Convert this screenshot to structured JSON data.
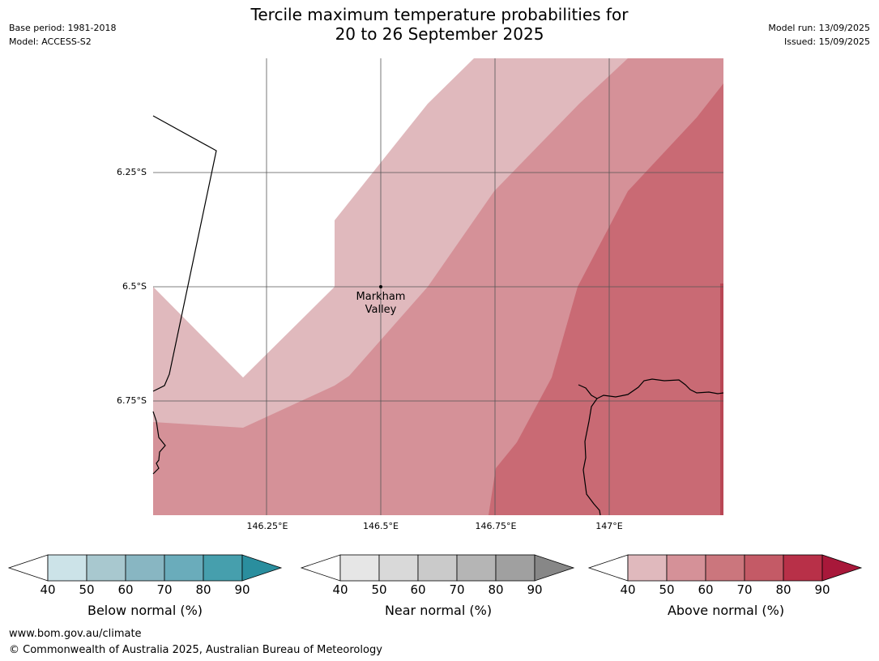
{
  "header": {
    "title_line1": "Tercile maximum temperature probabilities for",
    "title_line2": "20 to 26 September 2025",
    "base_period": "Base period: 1981-2018",
    "model": "Model: ACCESS-S2",
    "model_run": "Model run: 13/09/2025",
    "issued": "Issued: 15/09/2025"
  },
  "map": {
    "place_label_line1": "Markham",
    "place_label_line2": "Valley",
    "lat_labels": [
      "6.25°S",
      "6.5°S",
      "6.75°S"
    ],
    "lon_labels": [
      "146.25°E",
      "146.5°E",
      "146.75°E",
      "147°E"
    ],
    "zone_colors": {
      "above_40_50": "#e0b9bd",
      "above_50_60": "#d59198",
      "above_60_70": "#c96a74"
    }
  },
  "colorbars": [
    {
      "name": "below-normal",
      "label": "Below normal (%)",
      "ticks": [
        "40",
        "50",
        "60",
        "70",
        "80",
        "90"
      ],
      "colors": [
        "#cce3e8",
        "#a8c8cf",
        "#88b6c2",
        "#6aacbb",
        "#469fad",
        "#2a8e9e"
      ]
    },
    {
      "name": "near-normal",
      "label": "Near normal (%)",
      "ticks": [
        "40",
        "50",
        "60",
        "70",
        "80",
        "90"
      ],
      "colors": [
        "#e6e6e6",
        "#d9d9d9",
        "#cacaca",
        "#b5b5b5",
        "#a0a0a0",
        "#878787"
      ]
    },
    {
      "name": "above-normal",
      "label": "Above normal (%)",
      "ticks": [
        "40",
        "50",
        "60",
        "70",
        "80",
        "90"
      ],
      "colors": [
        "#e0b9bd",
        "#d59198",
        "#cb767d",
        "#c45a66",
        "#b83048",
        "#a8183a"
      ]
    }
  ],
  "footer": {
    "url": "www.bom.gov.au/climate",
    "copyright": "© Commonwealth of Australia 2025, Australian Bureau of Meteorology"
  }
}
